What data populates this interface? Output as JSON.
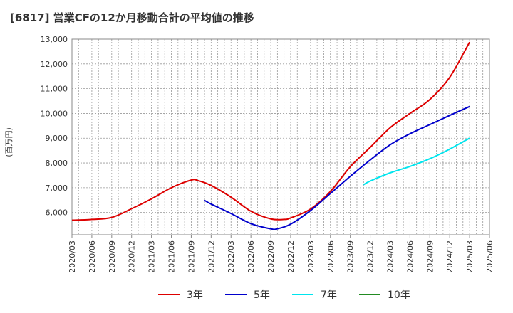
{
  "title": "[6817]  営業CFの12か月移動合計の平均値の推移",
  "chart_data": {
    "type": "line",
    "title": "[6817]  営業CFの12か月移動合計の平均値の推移",
    "ylabel": "(百万円)",
    "xlabel": "",
    "ylim": [
      5100,
      13000
    ],
    "y_ticks": [
      6000,
      7000,
      8000,
      9000,
      10000,
      11000,
      12000,
      13000
    ],
    "y_tick_labels": [
      "6,000",
      "7,000",
      "8,000",
      "9,000",
      "10,000",
      "11,000",
      "12,000",
      "13,000"
    ],
    "x_ticks": [
      "2020/03",
      "2020/06",
      "2020/09",
      "2020/12",
      "2021/03",
      "2021/06",
      "2021/09",
      "2021/12",
      "2022/03",
      "2022/06",
      "2022/09",
      "2022/12",
      "2023/03",
      "2023/06",
      "2023/09",
      "2023/12",
      "2024/03",
      "2024/06",
      "2024/09",
      "2024/12",
      "2025/03",
      "2025/06"
    ],
    "grid": true,
    "legend_position": "bottom",
    "series": [
      {
        "name": "3年",
        "color": "#dd0000",
        "x": [
          "2020/03",
          "2020/06",
          "2020/09",
          "2020/12",
          "2021/03",
          "2021/06",
          "2021/09",
          "2021/10",
          "2021/12",
          "2022/03",
          "2022/06",
          "2022/09",
          "2022/11",
          "2022/12",
          "2023/03",
          "2023/06",
          "2023/09",
          "2023/12",
          "2024/03",
          "2024/06",
          "2024/09",
          "2024/12",
          "2025/03"
        ],
        "values": [
          5690,
          5720,
          5800,
          6150,
          6550,
          7000,
          7310,
          7290,
          7090,
          6620,
          6050,
          5740,
          5720,
          5780,
          6140,
          6850,
          7850,
          8630,
          9420,
          10000,
          10560,
          11460,
          12880
        ]
      },
      {
        "name": "5年",
        "color": "#0000cc",
        "x": [
          "2021/11",
          "2021/12",
          "2022/03",
          "2022/06",
          "2022/09",
          "2022/10",
          "2022/12",
          "2023/03",
          "2023/06",
          "2023/09",
          "2023/12",
          "2024/03",
          "2024/06",
          "2024/09",
          "2024/12",
          "2025/03"
        ],
        "values": [
          6490,
          6340,
          5960,
          5550,
          5340,
          5340,
          5530,
          6080,
          6770,
          7460,
          8120,
          8730,
          9180,
          9550,
          9920,
          10280
        ]
      },
      {
        "name": "7年",
        "color": "#00e5ee",
        "x": [
          "2023/11",
          "2023/12",
          "2024/03",
          "2024/06",
          "2024/09",
          "2024/12",
          "2025/03"
        ],
        "values": [
          7120,
          7270,
          7600,
          7860,
          8170,
          8560,
          9000
        ]
      },
      {
        "name": "10年",
        "color": "#228b22",
        "x": [],
        "values": []
      }
    ]
  }
}
